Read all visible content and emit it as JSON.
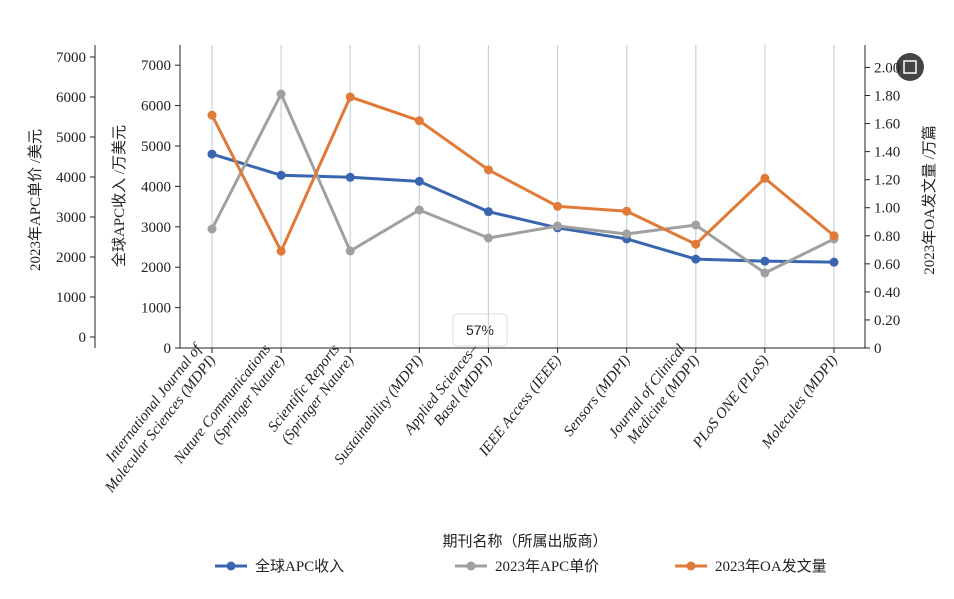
{
  "chart_data": {
    "type": "line",
    "categories": [
      "International Journal of\nMolecular Sciences (MDPI)",
      "Nature Communications\n(Springer Nature)",
      "Scientific Reports\n(Springer Nature)",
      "Sustainability (MDPI)",
      "Applied Sciences–\nBasel (MDPI)",
      "IEEE Access (IEEE)",
      "Sensors (MDPI)",
      "Journal of Clinical\nMedicine (MDPI)",
      "PLoS ONE (PLoS)",
      "Molecules (MDPI)"
    ],
    "xlabel": "期刊名称（所属出版商）",
    "ylabel": "全球APC收入 /万美元",
    "ylabel_outer": "2023年APC单价 /美元",
    "y2label": "2023年OA发文量 /万篇",
    "ylim": [
      0,
      7500
    ],
    "yticks": [
      0,
      1000,
      2000,
      3000,
      4000,
      5000,
      6000,
      7000
    ],
    "y3lim": [
      -275,
      7300
    ],
    "y3ticks": [
      0,
      1000,
      2000,
      3000,
      4000,
      5000,
      6000,
      7000
    ],
    "y2lim": [
      0,
      2.16
    ],
    "y2ticks": [
      0,
      {
        "value": 0.2,
        "label": "0.20"
      },
      {
        "value": 0.4,
        "label": "0.40"
      },
      {
        "value": 0.6,
        "label": "0.60"
      },
      {
        "value": 0.8,
        "label": "0.80"
      },
      {
        "value": 1.0,
        "label": "1.00"
      },
      {
        "value": 1.2,
        "label": "1.20"
      },
      {
        "value": 1.4,
        "label": "1.40"
      },
      {
        "value": 1.6,
        "label": "1.60"
      },
      {
        "value": 1.8,
        "label": "1.80"
      },
      {
        "value": 2.0,
        "label": "2.00"
      }
    ],
    "grid": "x",
    "series": [
      {
        "name": "全球APC收入",
        "color": "#3a66b0",
        "values": [
          4800,
          4275,
          4225,
          4125,
          3375,
          2975,
          2700,
          2200,
          2150,
          2125
        ]
      },
      {
        "name": "2023年APC单价",
        "color": "#a0a0a0",
        "axis": "y3",
        "values": [
          2700,
          6075,
          2150,
          3175,
          2475,
          2775,
          2575,
          2800,
          1600,
          2450
        ]
      },
      {
        "name": "2023年OA发文量",
        "color": "#e07a38",
        "axis": "y2",
        "values": [
          1.66,
          0.69,
          1.79,
          1.62,
          1.27,
          1.01,
          0.975,
          0.74,
          1.21,
          0.8
        ]
      }
    ]
  },
  "overlay": {
    "zoom": "57%"
  }
}
